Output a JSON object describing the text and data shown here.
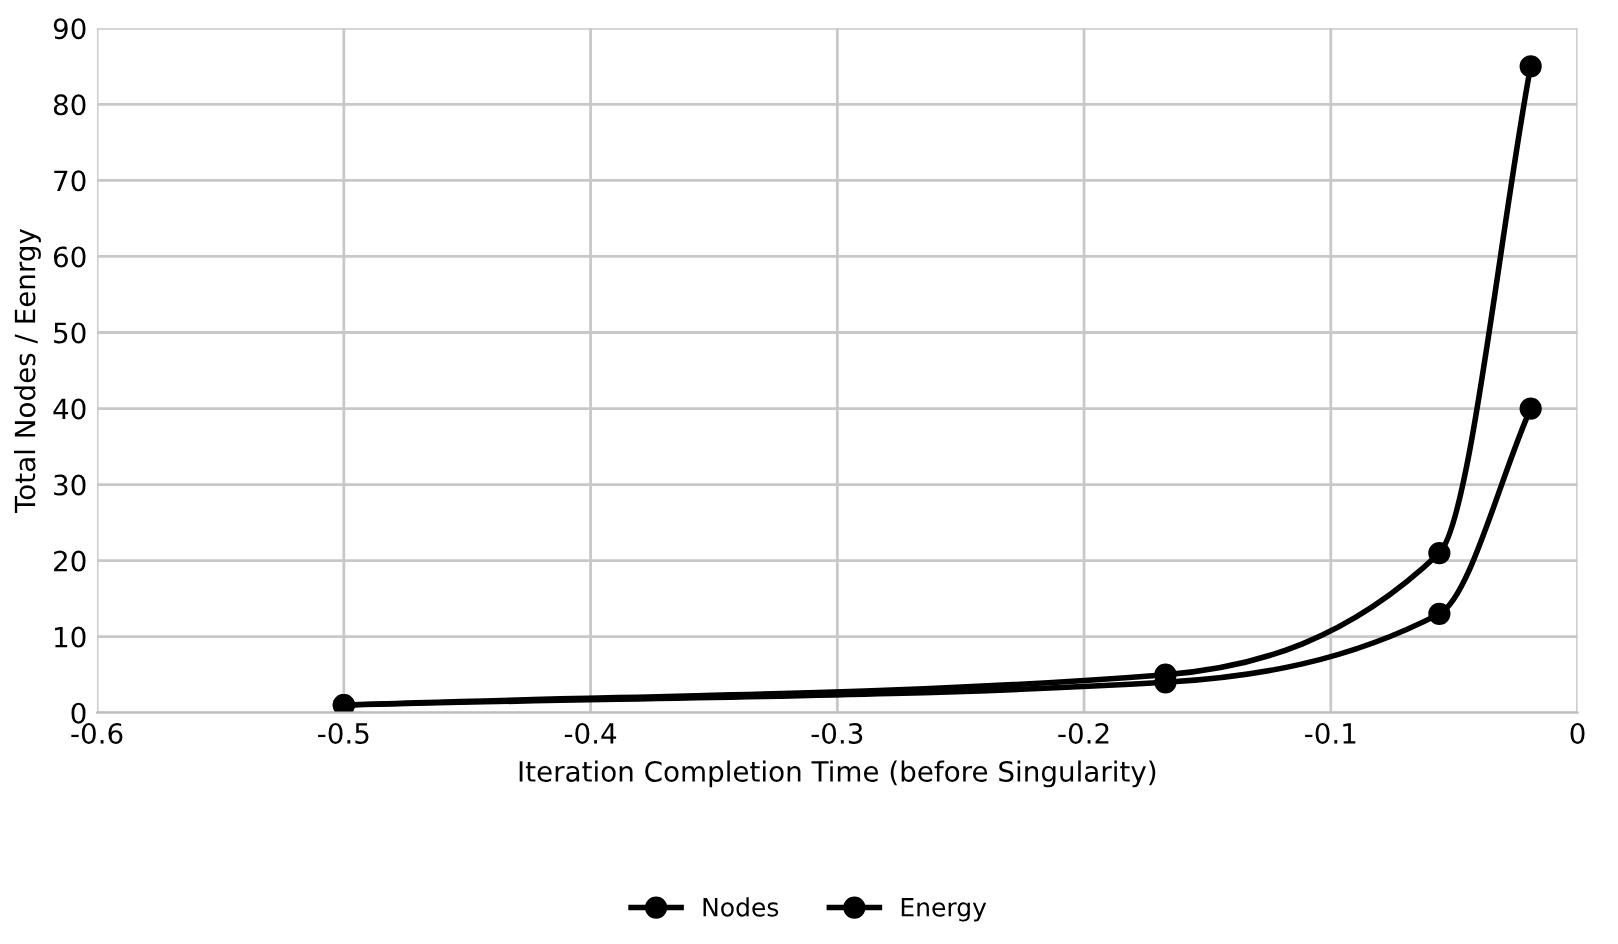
{
  "chart_data": {
    "type": "line",
    "xlabel": "Iteration Completion Time (before Singularity)",
    "ylabel": "Total Nodes / Eenrgy",
    "x": [
      -0.5,
      -0.167,
      -0.056,
      -0.019
    ],
    "series": [
      {
        "name": "Nodes",
        "color": "#000000",
        "values": [
          1,
          5,
          21,
          85
        ]
      },
      {
        "name": "Energy",
        "color": "#000000",
        "values": [
          1,
          4,
          13,
          40
        ]
      }
    ],
    "xlim": [
      -0.6,
      0
    ],
    "xticks": [
      -0.6,
      -0.5,
      -0.4,
      -0.3,
      -0.2,
      -0.1,
      0
    ],
    "ylim": [
      0,
      90
    ],
    "yticks": [
      0,
      10,
      20,
      30,
      40,
      50,
      60,
      70,
      80,
      90
    ],
    "grid": true,
    "legend": "bottom",
    "marker": "circle",
    "line_style": "solid"
  }
}
